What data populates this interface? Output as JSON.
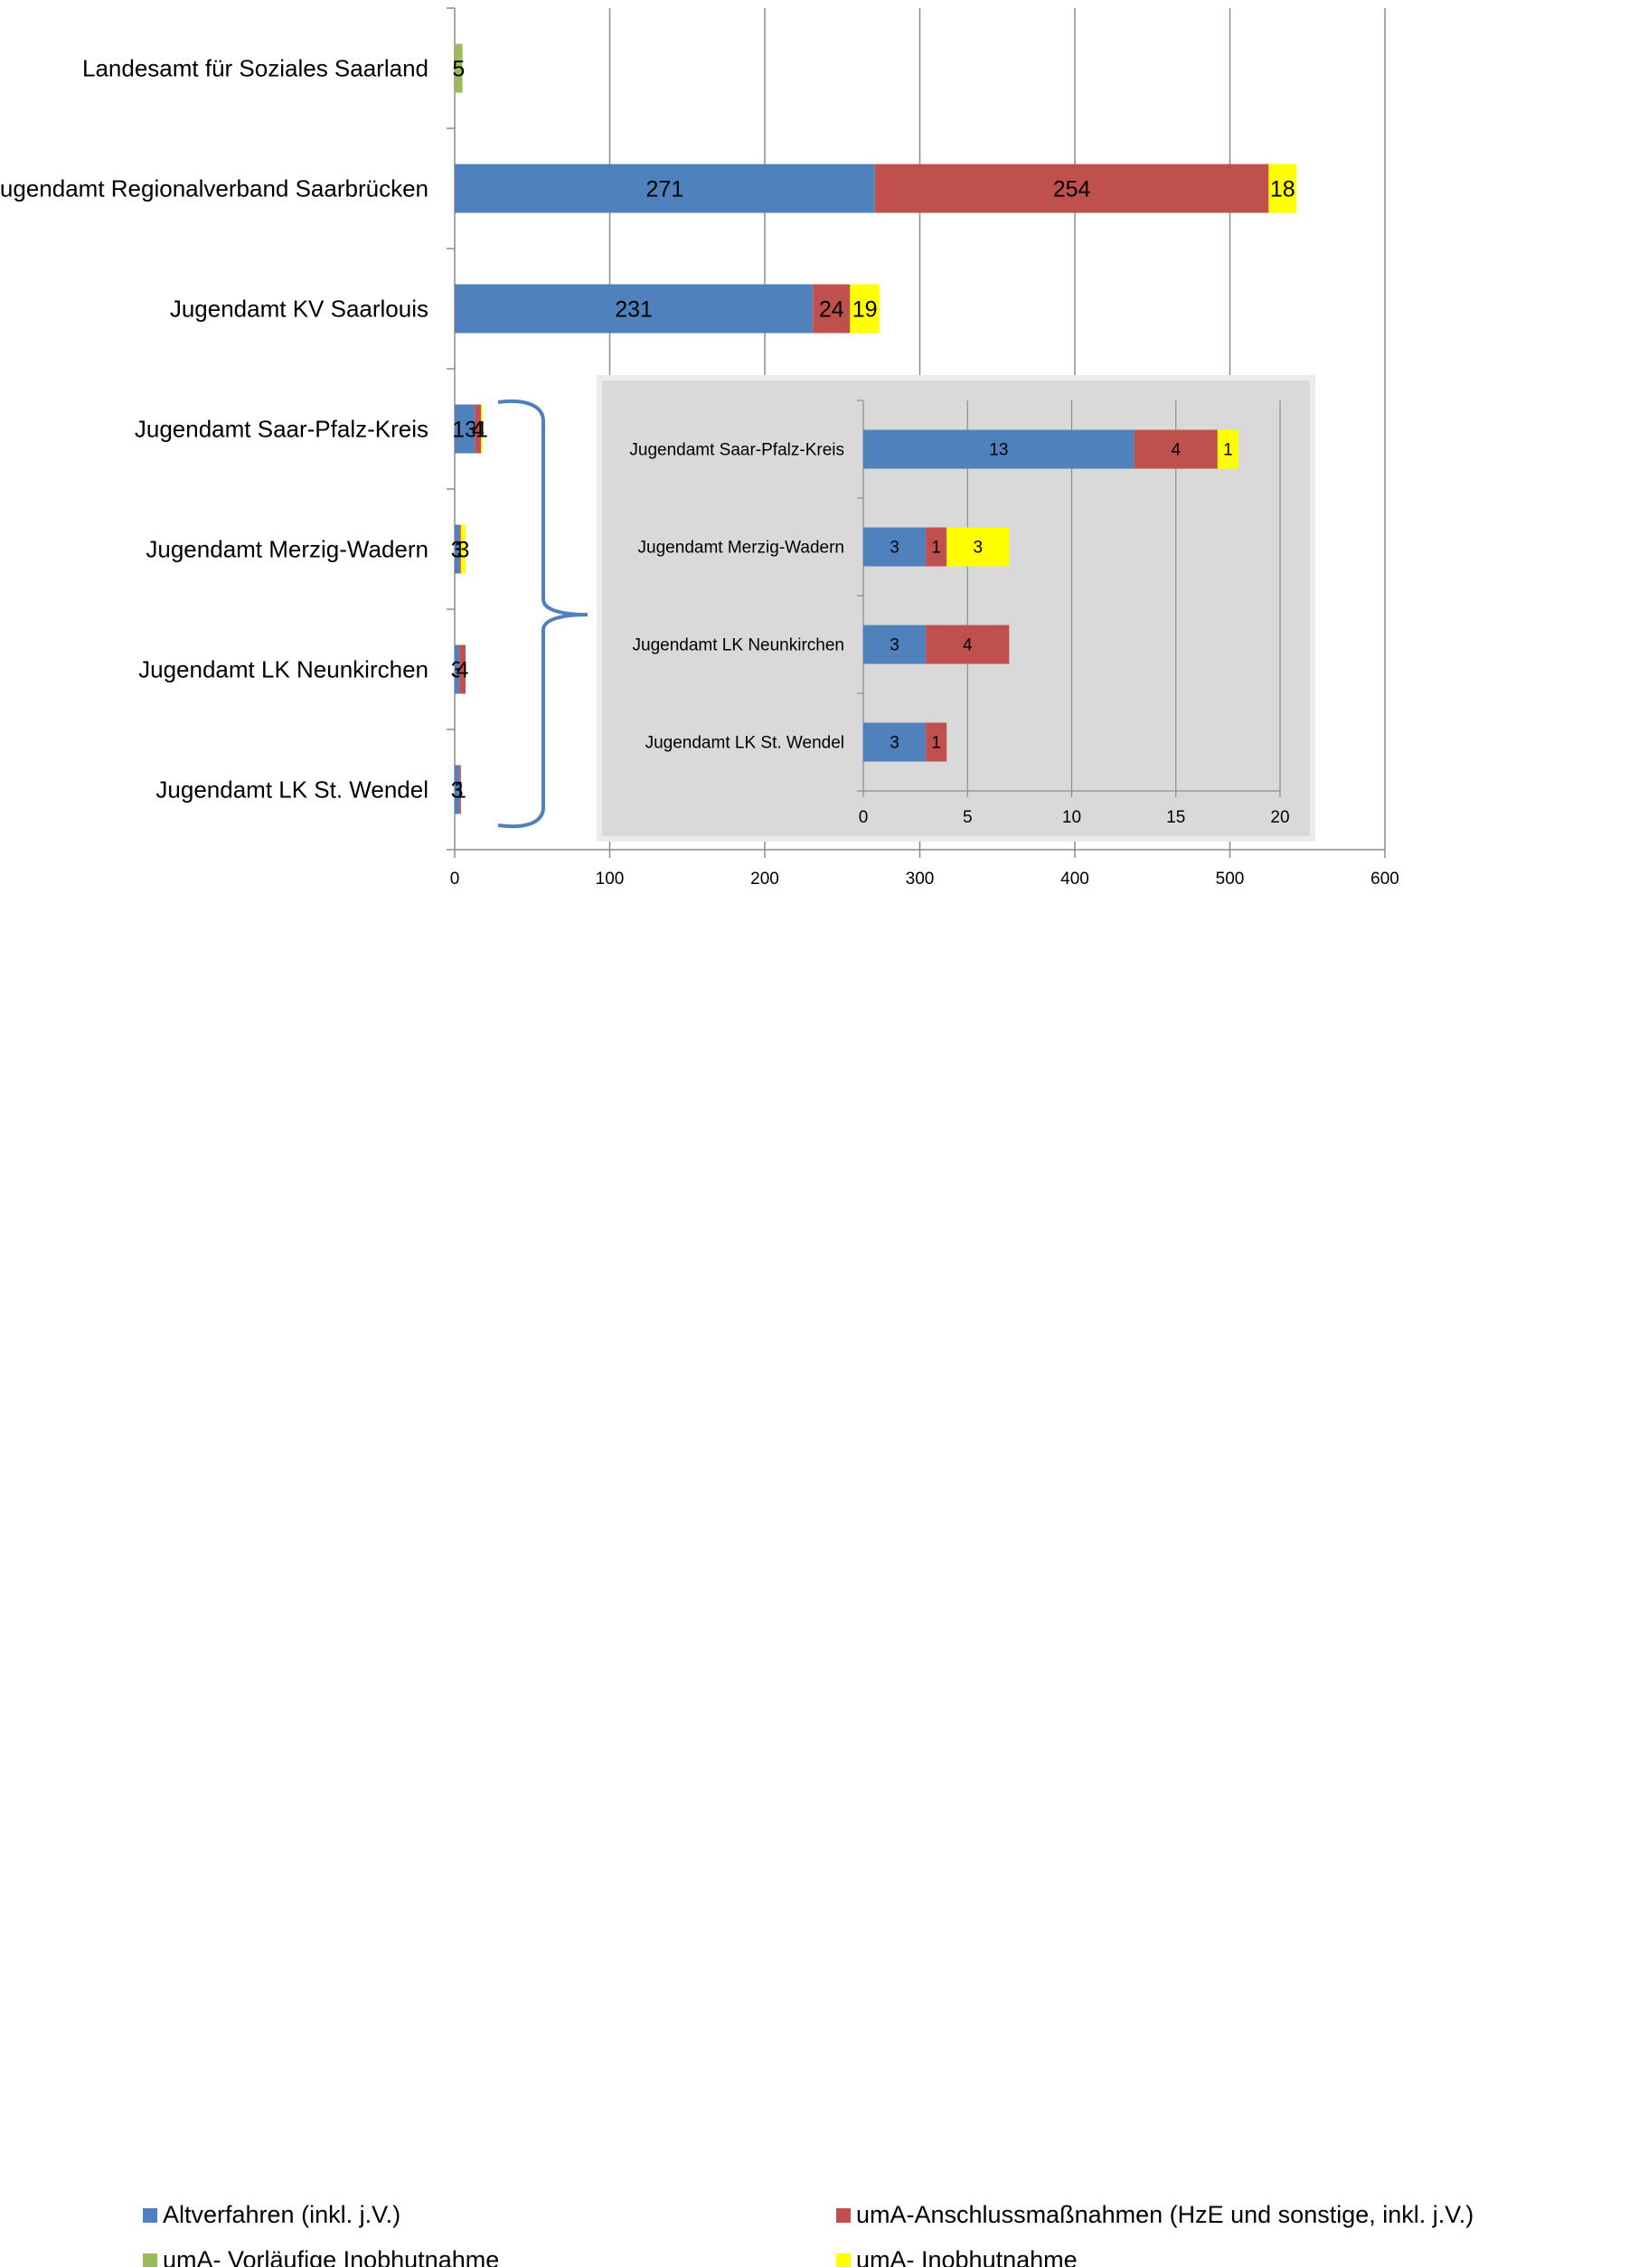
{
  "chart_data": [
    {
      "type": "bar",
      "orientation": "horizontal",
      "stacked": true,
      "categories": [
        "Landesamt für Soziales Saarland",
        "Jugendamt Regionalverband Saarbrücken",
        "Jugendamt KV Saarlouis",
        "Jugendamt Saar-Pfalz-Kreis",
        "Jugendamt Merzig-Wadern",
        "Jugendamt LK Neunkirchen",
        "Jugendamt LK St. Wendel"
      ],
      "series": [
        {
          "name": "Altverfahren (inkl. j.V.)",
          "color": "#4F81BD",
          "values": [
            0,
            271,
            231,
            13,
            3,
            3,
            3
          ]
        },
        {
          "name": "umA-Anschlussmaßnahmen (HzE und sonstige, inkl. j.V.)",
          "color": "#C0504D",
          "values": [
            0,
            254,
            24,
            4,
            1,
            4,
            1
          ]
        },
        {
          "name": "umA- Vorläufige Inobhutnahme",
          "color": "#9BBB59",
          "values": [
            5,
            0,
            0,
            0,
            0,
            0,
            0
          ]
        },
        {
          "name": "umA- Inobhutnahme",
          "color": "#FFFF00",
          "values": [
            0,
            18,
            19,
            1,
            3,
            0,
            0
          ]
        }
      ],
      "xlim": [
        0,
        600
      ],
      "xticks": [
        "0",
        "100",
        "200",
        "300",
        "400",
        "500",
        "600"
      ],
      "grid": true,
      "legend_position": "bottom"
    },
    {
      "type": "bar",
      "orientation": "horizontal",
      "stacked": true,
      "inset": true,
      "categories": [
        "Jugendamt Saar-Pfalz-Kreis",
        "Jugendamt Merzig-Wadern",
        "Jugendamt LK Neunkirchen",
        "Jugendamt LK St. Wendel"
      ],
      "series": [
        {
          "name": "Altverfahren (inkl. j.V.)",
          "color": "#4F81BD",
          "values": [
            13,
            3,
            3,
            3
          ]
        },
        {
          "name": "umA-Anschlussmaßnahmen (HzE und sonstige, inkl. j.V.)",
          "color": "#C0504D",
          "values": [
            4,
            1,
            4,
            1
          ]
        },
        {
          "name": "umA- Inobhutnahme",
          "color": "#FFFF00",
          "values": [
            1,
            3,
            0,
            0
          ]
        }
      ],
      "xlim": [
        0,
        20
      ],
      "xticks": [
        "0",
        "5",
        "10",
        "15",
        "20"
      ],
      "grid": true,
      "background": "#D9D9D9"
    }
  ],
  "legend": [
    {
      "label": "Altverfahren (inkl. j.V.)",
      "color": "#4F81BD"
    },
    {
      "label": "umA-Anschlussmaßnahmen (HzE und sonstige, inkl. j.V.)",
      "color": "#C0504D"
    },
    {
      "label": "umA- Vorläufige Inobhutnahme",
      "color": "#9BBB59"
    },
    {
      "label": "umA- Inobhutnahme",
      "color": "#FFFF00"
    }
  ]
}
